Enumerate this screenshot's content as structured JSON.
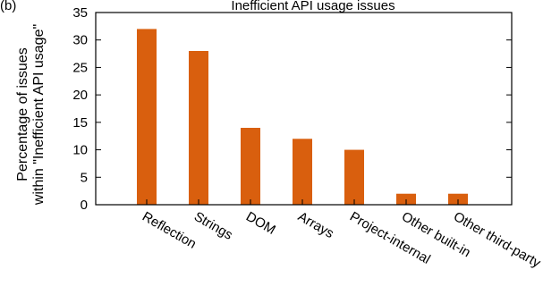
{
  "caption_fragment": "(b)",
  "title_fragment": "Inefficient API usage issues",
  "chart_data": {
    "type": "bar",
    "categories": [
      "Reflection",
      "Strings",
      "DOM",
      "Arrays",
      "Project-internal",
      "Other built-in",
      "Other third-party"
    ],
    "values": [
      32,
      28,
      14,
      12,
      10,
      2,
      2
    ],
    "ylabel_line1": "Percentage of issues",
    "ylabel_line2": "within \"Inefficient API usage\"",
    "xlabel": "",
    "ylim": [
      0,
      35
    ],
    "yticks": [
      0,
      5,
      10,
      15,
      20,
      25,
      30,
      35
    ],
    "bar_color": "#d95f0e",
    "grid": false,
    "legend": "none"
  }
}
